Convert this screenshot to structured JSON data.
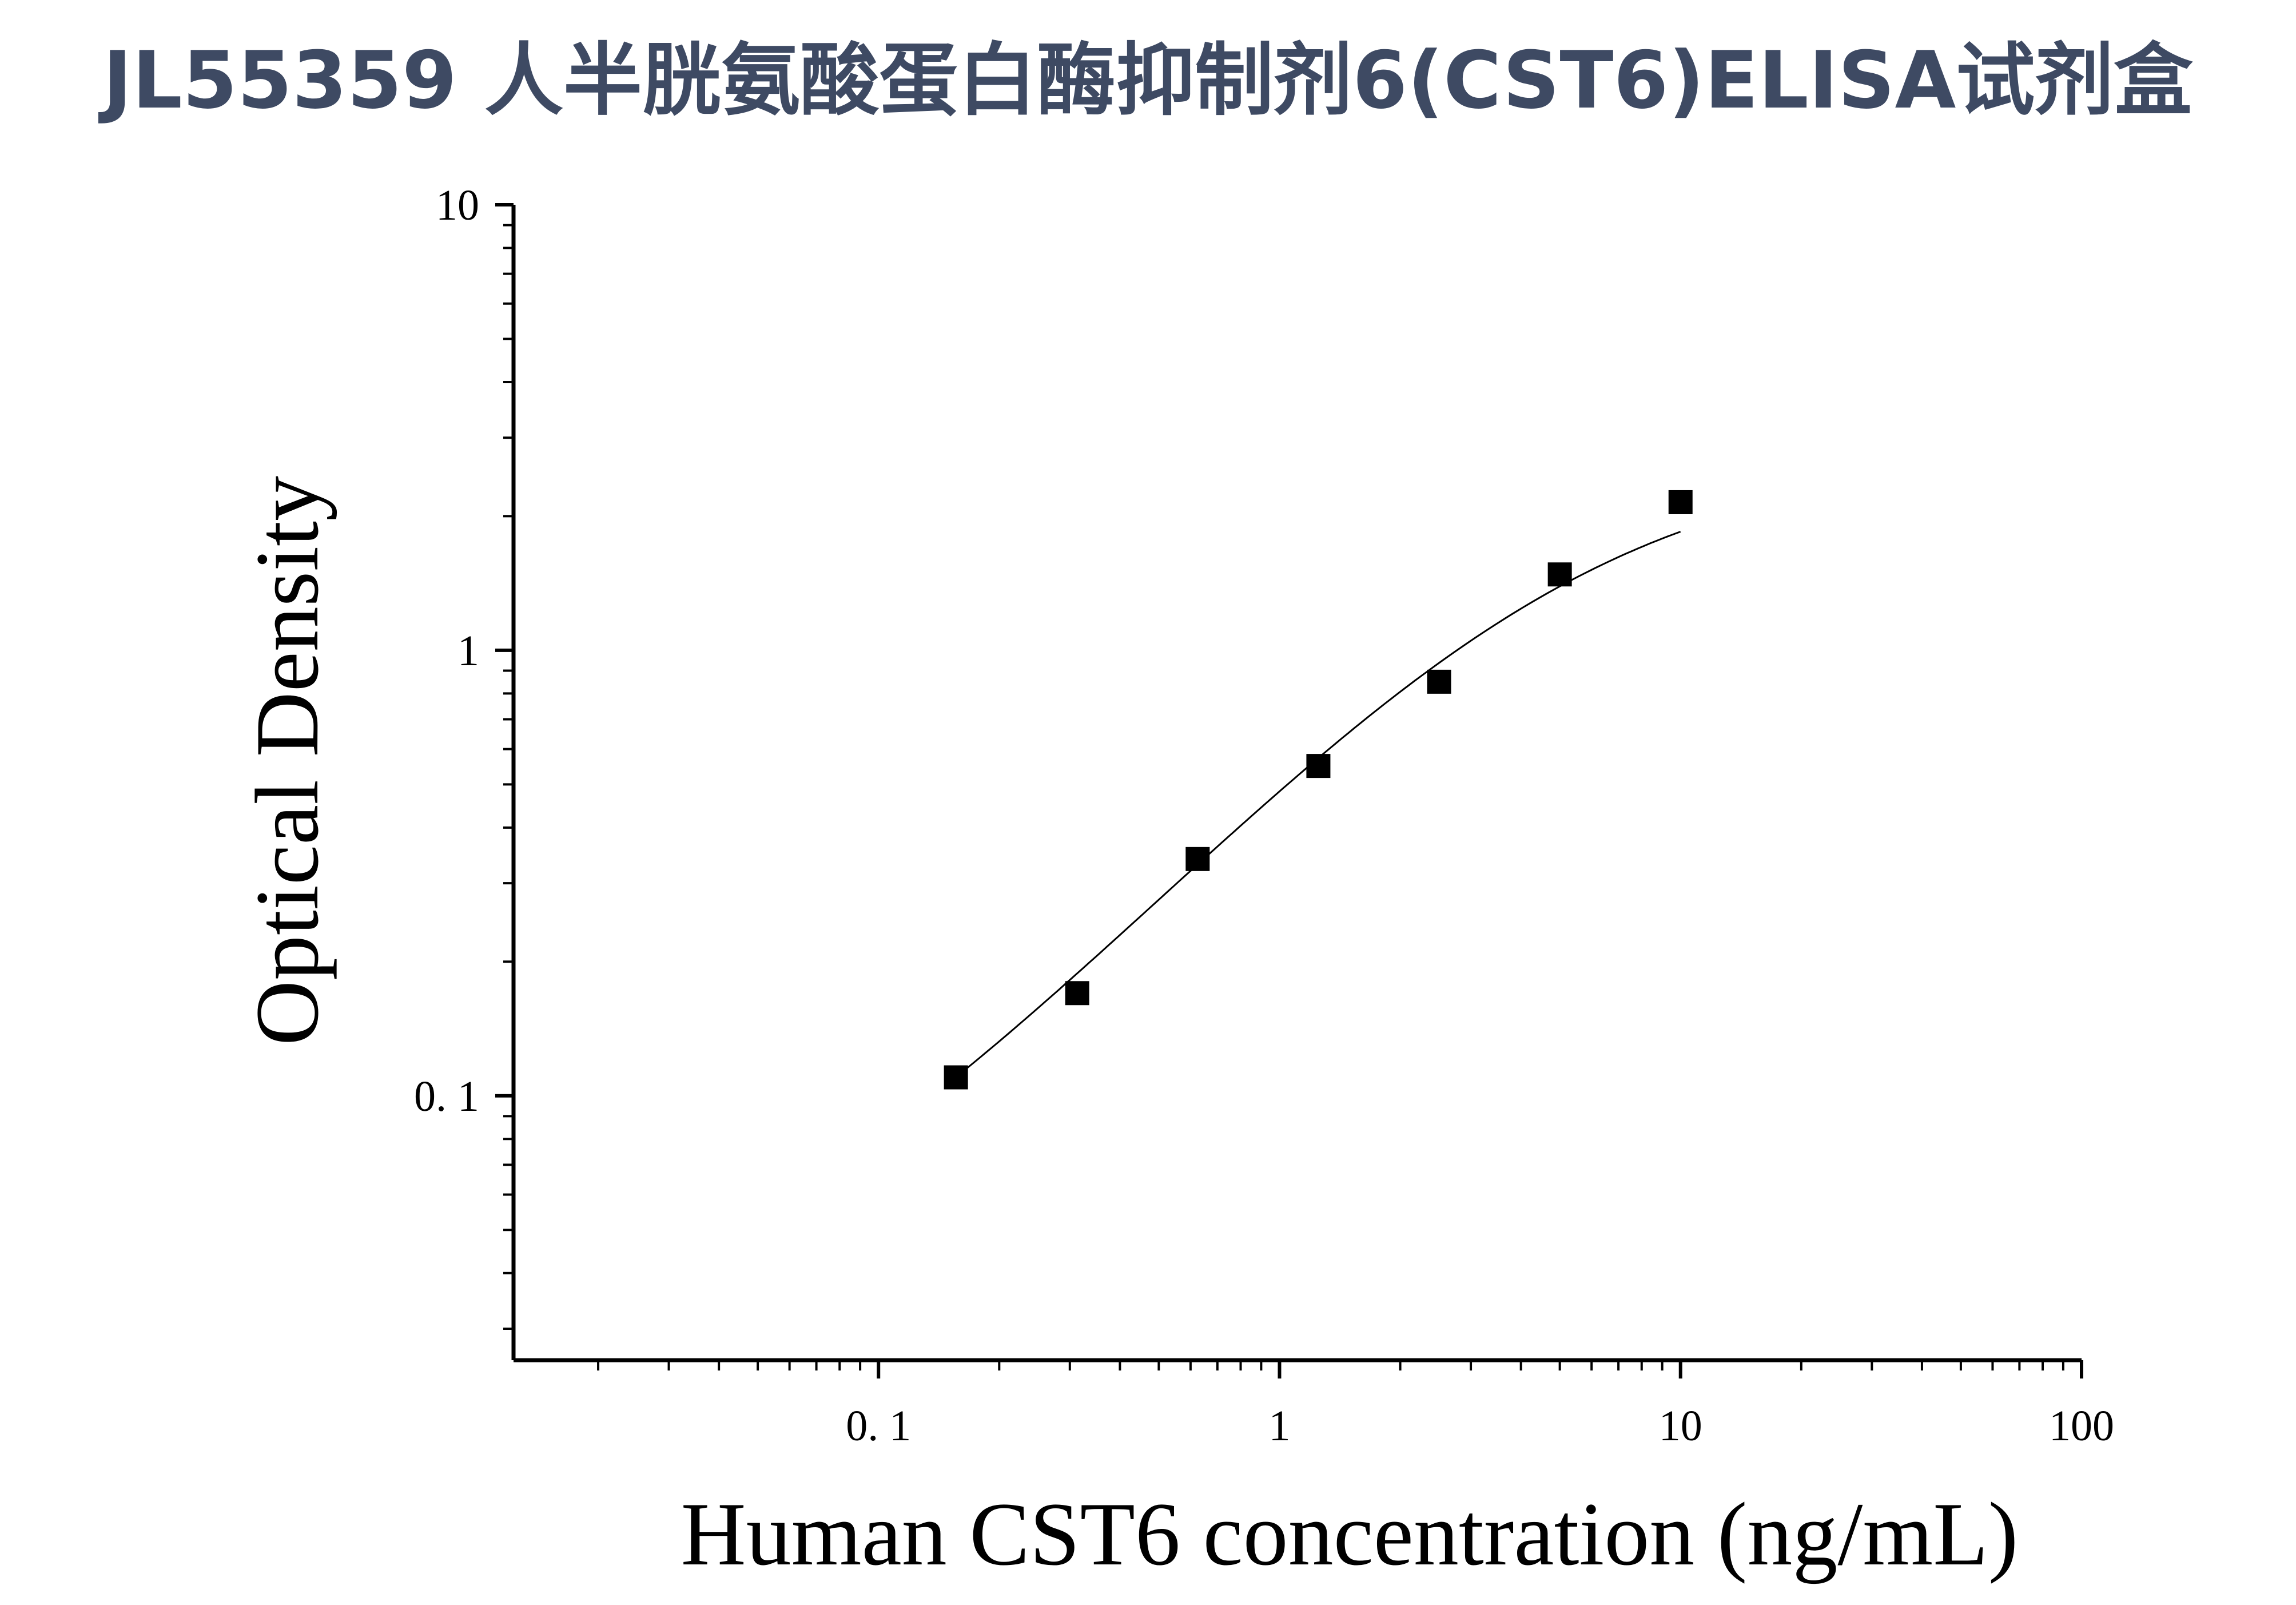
{
  "chart_data": {
    "type": "scatter",
    "title": "JL55359 人半胱氨酸蛋白酶抑制剂6(CST6)ELISA试剂盒",
    "xlabel": "Human CST6 concentration (ng/mL)",
    "ylabel": "Optical Density",
    "xscale": "log",
    "yscale": "log",
    "xlim": [
      0.0123,
      100
    ],
    "ylim": [
      0.0255,
      10
    ],
    "x_ticks": [
      {
        "value": 0.1,
        "label": "0. 1"
      },
      {
        "value": 1,
        "label": "1"
      },
      {
        "value": 10,
        "label": "10"
      },
      {
        "value": 100,
        "label": "100"
      }
    ],
    "y_ticks": [
      {
        "value": 0.1,
        "label": "0. 1"
      },
      {
        "value": 1,
        "label": "1"
      },
      {
        "value": 10,
        "label": "10"
      }
    ],
    "grid": false,
    "legend": "none",
    "series": [
      {
        "marker": "square",
        "color": "#000000",
        "points": [
          {
            "x": 0.156,
            "y": 0.11
          },
          {
            "x": 0.313,
            "y": 0.17
          },
          {
            "x": 0.625,
            "y": 0.34
          },
          {
            "x": 1.25,
            "y": 0.55
          },
          {
            "x": 2.5,
            "y": 0.85
          },
          {
            "x": 5,
            "y": 1.48
          },
          {
            "x": 10,
            "y": 2.15
          }
        ]
      }
    ],
    "fit_curve": {
      "type": "4-parameter logistic",
      "color": "#000000",
      "x_range": [
        0.156,
        10
      ]
    },
    "title_color": "#3e4a63"
  }
}
